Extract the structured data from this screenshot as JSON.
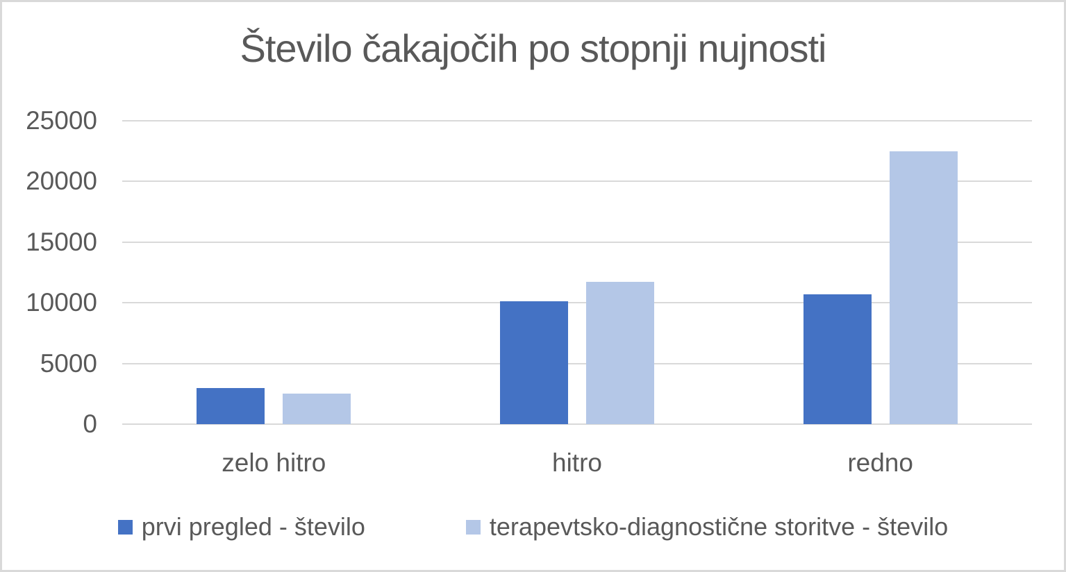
{
  "chart": {
    "title": "Število čakajočih po stopnji nujnosti"
  },
  "chart_data": {
    "type": "bar",
    "title": "Število čakajočih po stopnji nujnosti",
    "xlabel": "",
    "ylabel": "",
    "categories": [
      "zelo hitro",
      "hitro",
      "redno"
    ],
    "series": [
      {
        "name": "prvi pregled - število",
        "color": "#4472C4",
        "values": [
          3000,
          10100,
          10700
        ]
      },
      {
        "name": "terapevtsko-diagnostične storitve - število",
        "color": "#B4C7E7",
        "values": [
          2500,
          11700,
          22500
        ]
      }
    ],
    "ylim": [
      0,
      25000
    ],
    "yticks": [
      0,
      5000,
      10000,
      15000,
      20000,
      25000
    ],
    "grid": true,
    "legend_position": "bottom",
    "colors": {
      "text": "#595959",
      "gridline": "#D9D9D9",
      "border": "#D9D9D9",
      "background": "#FFFFFF"
    }
  }
}
